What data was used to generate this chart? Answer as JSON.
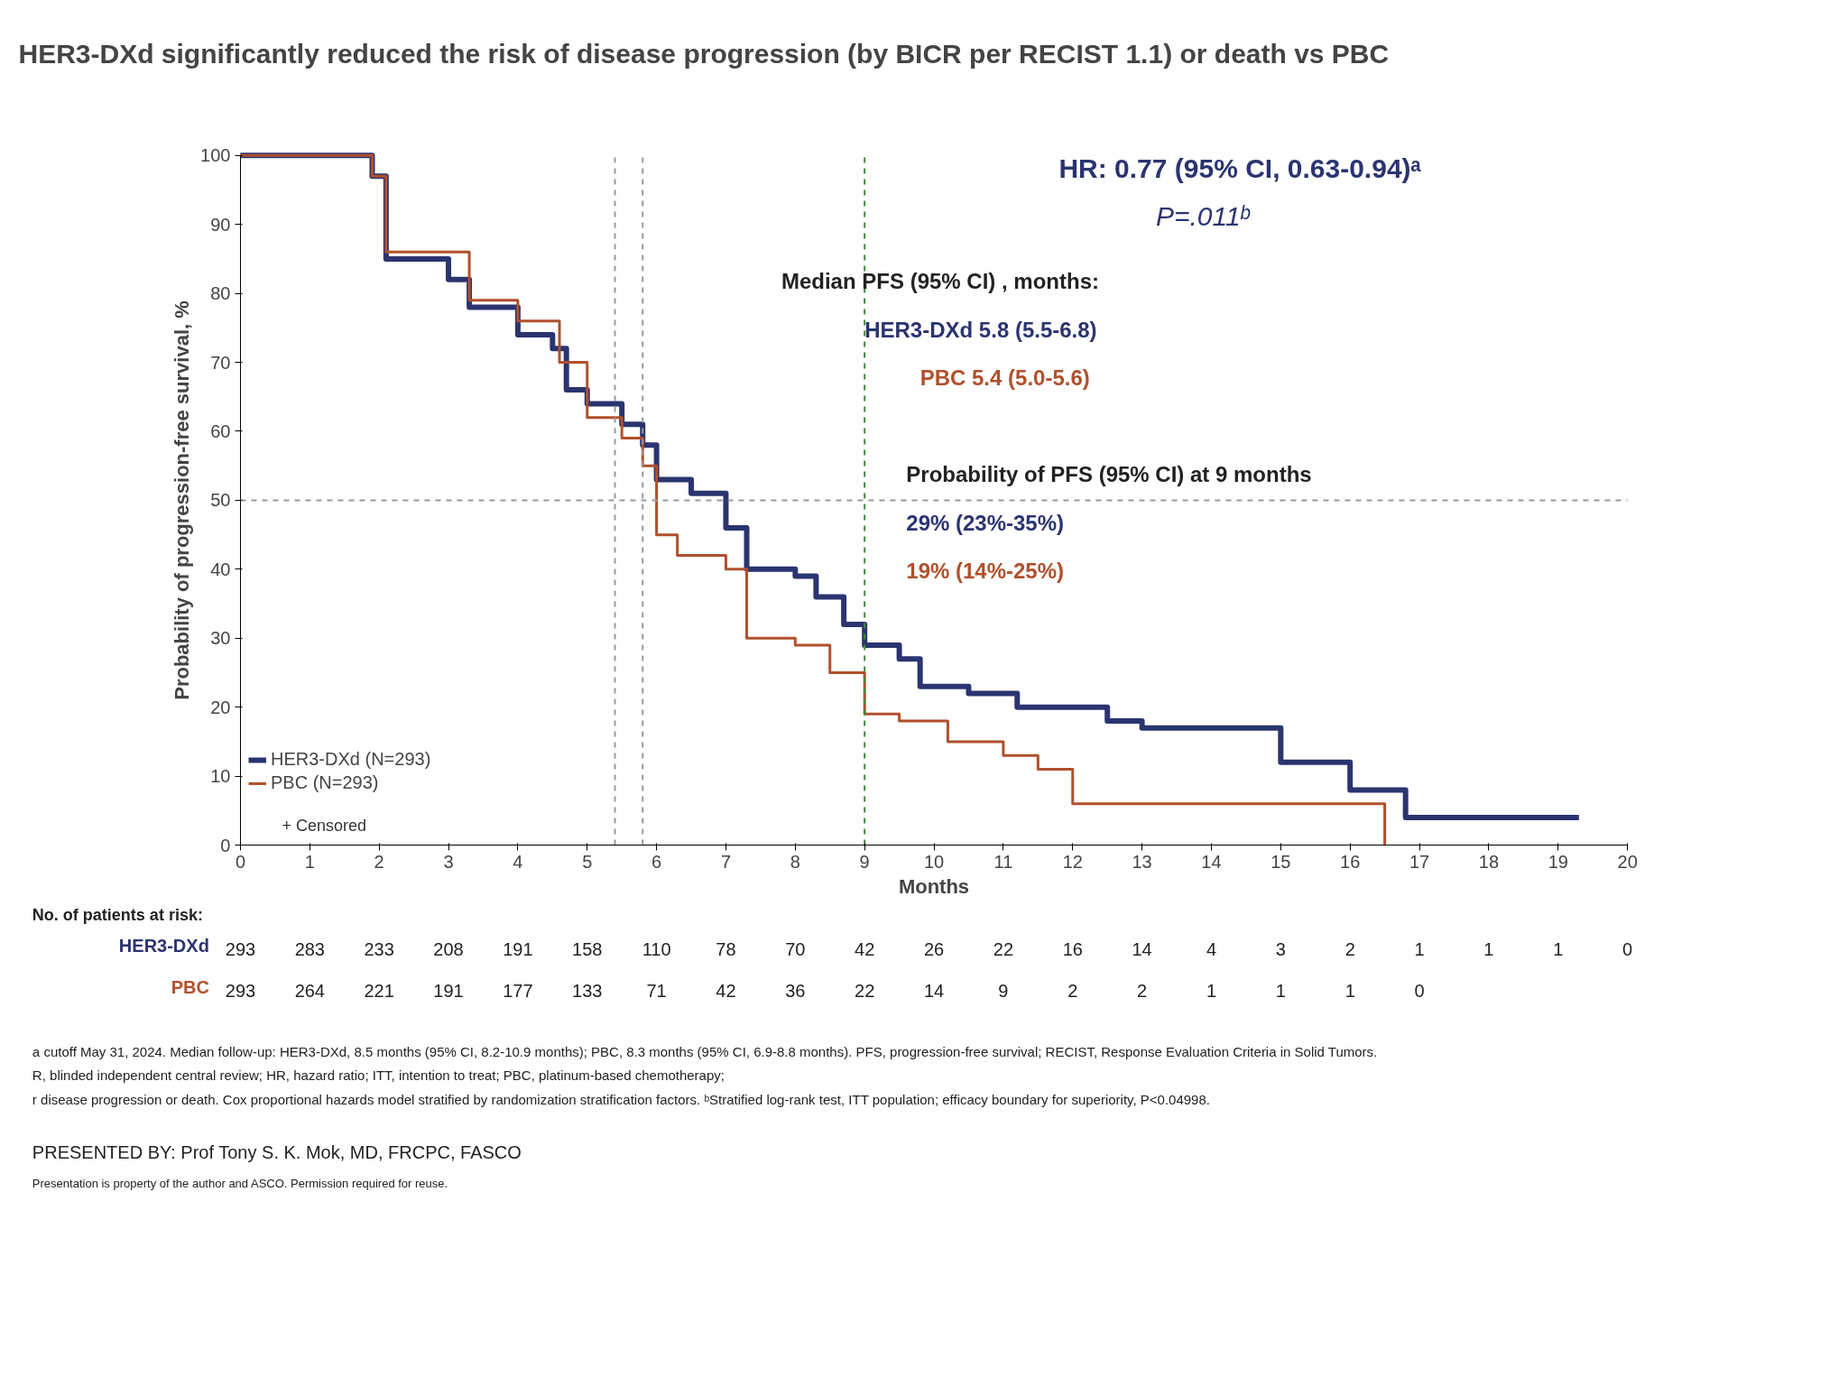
{
  "chart_data": {
    "type": "step",
    "title": "HER3-DXd significantly reduced the risk of disease progression (by BICR per RECIST 1.1) or death vs PBC",
    "xlabel": "Months",
    "ylabel": "Probability of progression-free survival, %",
    "xlim": [
      0,
      20
    ],
    "ylim": [
      0,
      100
    ],
    "xticks": [
      0,
      1,
      2,
      3,
      4,
      5,
      6,
      7,
      8,
      9,
      10,
      11,
      12,
      13,
      14,
      15,
      16,
      17,
      18,
      19,
      20
    ],
    "yticks": [
      0,
      10,
      20,
      30,
      40,
      50,
      60,
      70,
      80,
      90,
      100
    ],
    "grid": false,
    "legend": "bottom left",
    "series": [
      {
        "name": "HER3-DXd (N=293)",
        "color": "#2b3470",
        "x": [
          0,
          1.9,
          2.1,
          3.0,
          3.3,
          4.0,
          4.5,
          4.7,
          5.0,
          5.5,
          5.8,
          6.0,
          6.5,
          7.0,
          7.3,
          8.0,
          8.3,
          8.7,
          9.0,
          9.5,
          9.8,
          10.5,
          11.2,
          12.5,
          13.0,
          15.0,
          16.0,
          16.8,
          19.3
        ],
        "values": [
          100,
          97,
          85,
          82,
          78,
          74,
          72,
          66,
          64,
          61,
          58,
          53,
          51,
          46,
          40,
          39,
          36,
          32,
          29,
          27,
          23,
          22,
          20,
          18,
          17,
          12,
          8,
          4,
          4
        ]
      },
      {
        "name": "PBC (N=293)",
        "color": "#b0502c",
        "x": [
          0,
          1.9,
          2.1,
          3.0,
          3.3,
          4.0,
          4.6,
          5.0,
          5.5,
          5.8,
          6.0,
          6.3,
          7.0,
          7.3,
          8.0,
          8.5,
          9.0,
          9.5,
          10.2,
          11.0,
          11.5,
          12.0,
          16.5,
          16.5
        ],
        "values": [
          100,
          97,
          86,
          86,
          79,
          76,
          70,
          62,
          59,
          55,
          45,
          42,
          40,
          30,
          29,
          25,
          19,
          18,
          15,
          13,
          11,
          6,
          6,
          0
        ]
      }
    ],
    "ref_lines": [
      {
        "axis": "y",
        "value": 50,
        "label": null,
        "color": "#999999",
        "line_style": "dashed"
      },
      {
        "axis": "x",
        "value": 5.4,
        "label": null,
        "color": "#999999",
        "line_style": "dashed"
      },
      {
        "axis": "x",
        "value": 5.8,
        "label": null,
        "color": "#999999",
        "line_style": "dashed"
      },
      {
        "axis": "x",
        "value": 9,
        "label": null,
        "color": "#3e8a3e",
        "line_style": "dashed"
      }
    ],
    "annotations": [
      "HR: 0.77 (95% CI, 0.63-0.94)ᵃ",
      "P=.011ᵇ",
      "Median PFS (95% CI) , months:",
      "HER3-DXd 5.8 (5.5-6.8)",
      "PBC 5.4 (5.0-5.6)",
      "Probability of PFS (95% CI) at 9 months",
      "29% (23%-35%)",
      "19% (14%-25%)",
      "+ Censored",
      "No. of patients at risk:",
      "HER3-DXd",
      "293 283 233 208 191 158 110 78 70 42 26 22 16 14 4 3 2 1 1 1 0",
      "PBC",
      "293 264 221 191 177 133 71 42 36 22 14 9 2 2 1 1 1 0",
      "a cutoff May 31, 2024. Median follow-up: HER3-DXd, 8.5 months (95% CI, 8.2-10.9 months); PBC, 8.3 months (95% CI, 6.9-8.8 months). PFS, progression-free survival; RECIST, Response Evaluation Criteria in Solid Tumors.",
      "R, blinded independent central review; HR, hazard ratio; ITT, intention to treat; PBC, platinum-based chemotherapy;",
      "r disease progression or death. Cox proportional hazards model stratified by randomization stratification factors. ᵇStratified log-rank test, ITT population; efficacy boundary for superiority, P<0.04998.",
      "PRESENTED BY: Prof Tony S. K. Mok, MD, FRCPC, FASCO",
      "Presentation is property of the author and ASCO. Permission required for reuse."
    ]
  }
}
